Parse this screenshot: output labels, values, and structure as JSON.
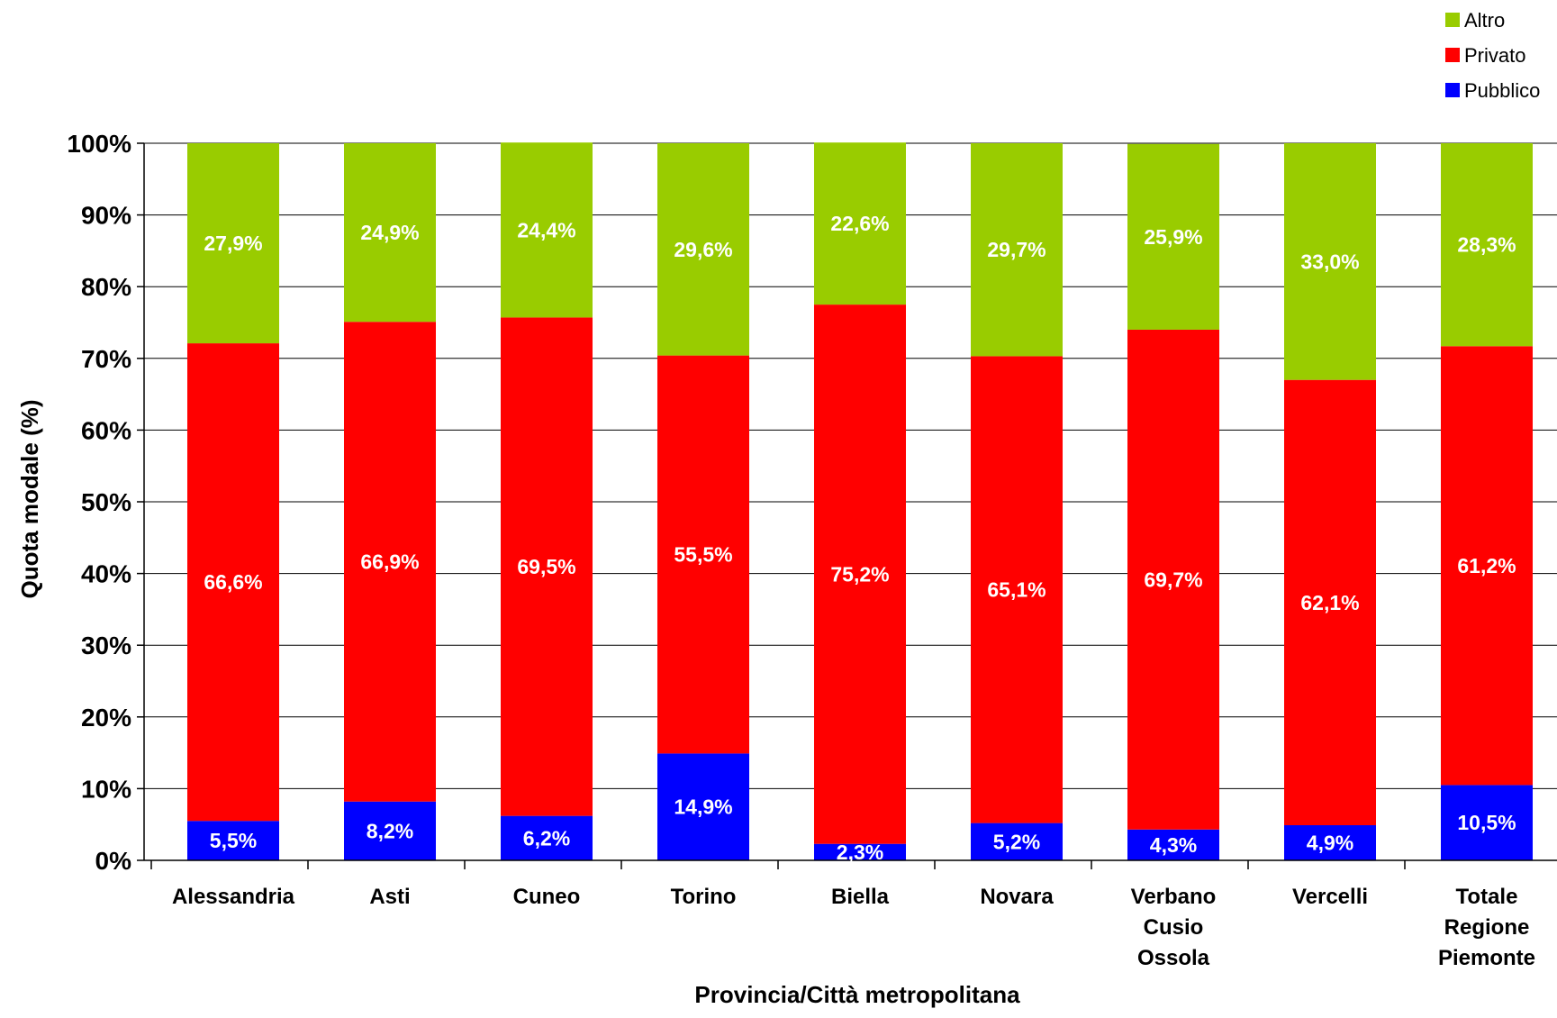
{
  "chart_data": {
    "type": "bar",
    "stacked": true,
    "categories": [
      [
        "Alessandria"
      ],
      [
        "Asti"
      ],
      [
        "Cuneo"
      ],
      [
        "Torino"
      ],
      [
        "Biella"
      ],
      [
        "Novara"
      ],
      [
        "Verbano",
        "Cusio",
        "Ossola"
      ],
      [
        "Vercelli"
      ],
      [
        "Totale",
        "Regione",
        "Piemonte"
      ]
    ],
    "series": [
      {
        "name": "Pubblico",
        "color": "#0000ff",
        "values": [
          5.5,
          8.2,
          6.2,
          14.9,
          2.3,
          5.2,
          4.3,
          4.9,
          10.5
        ],
        "labels": [
          "5,5%",
          "8,2%",
          "6,2%",
          "14,9%",
          "2,3%",
          "5,2%",
          "4,3%",
          "4,9%",
          "10,5%"
        ]
      },
      {
        "name": "Privato",
        "color": "#ff0000",
        "values": [
          66.6,
          66.9,
          69.5,
          55.5,
          75.2,
          65.1,
          69.7,
          62.1,
          61.2
        ],
        "labels": [
          "66,6%",
          "66,9%",
          "69,5%",
          "55,5%",
          "75,2%",
          "65,1%",
          "69,7%",
          "62,1%",
          "61,2%"
        ]
      },
      {
        "name": "Altro",
        "color": "#99cc00",
        "values": [
          27.9,
          24.9,
          24.4,
          29.6,
          22.6,
          29.7,
          25.9,
          33.0,
          28.3
        ],
        "labels": [
          "27,9%",
          "24,9%",
          "24,4%",
          "29,6%",
          "22,6%",
          "29,7%",
          "25,9%",
          "33,0%",
          "28,3%"
        ]
      }
    ],
    "legend_order": [
      "Altro",
      "Privato",
      "Pubblico"
    ],
    "legend_position": "top-right",
    "xlabel": "Provincia/Città metropolitana",
    "ylabel": "Quota modale (%)",
    "ylim": [
      0,
      100
    ],
    "yticks": [
      "0%",
      "10%",
      "20%",
      "30%",
      "40%",
      "50%",
      "60%",
      "70%",
      "80%",
      "90%",
      "100%"
    ],
    "grid": true
  }
}
